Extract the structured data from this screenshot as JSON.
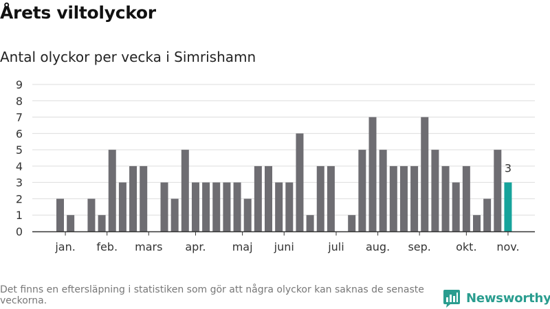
{
  "title": "Årets viltolyckor",
  "subtitle": "Antal olyckor per vecka i Simrishamn",
  "footnote": "Det finns en eftersläpning i statistiken som gör att några olyckor kan saknas de senaste veckorna.",
  "brand": {
    "name": "Newsworthy",
    "icon": "bar-chart-logo-icon",
    "color": "#2a9d8f"
  },
  "chart_data": {
    "type": "bar",
    "x": [
      1,
      2,
      3,
      4,
      5,
      6,
      7,
      8,
      9,
      10,
      11,
      12,
      13,
      14,
      15,
      16,
      17,
      18,
      19,
      20,
      21,
      22,
      23,
      24,
      25,
      26,
      27,
      28,
      29,
      30,
      31,
      32,
      33,
      34,
      35,
      36,
      37,
      38,
      39,
      40,
      41,
      42,
      43,
      44
    ],
    "values": [
      2,
      1,
      0,
      2,
      1,
      5,
      3,
      4,
      4,
      0,
      3,
      2,
      5,
      3,
      3,
      3,
      3,
      3,
      2,
      4,
      4,
      3,
      3,
      6,
      1,
      4,
      4,
      0,
      1,
      5,
      7,
      5,
      4,
      4,
      4,
      7,
      5,
      4,
      3,
      4,
      1,
      2,
      5,
      3
    ],
    "highlight_index": 43,
    "highlight_label": "3",
    "month_ticks": [
      {
        "label": "jan.",
        "at": 1.5
      },
      {
        "label": "feb.",
        "at": 5.5
      },
      {
        "label": "mars",
        "at": 9.5
      },
      {
        "label": "apr.",
        "at": 14.0
      },
      {
        "label": "maj",
        "at": 18.5
      },
      {
        "label": "juni",
        "at": 22.5
      },
      {
        "label": "juli",
        "at": 27.5
      },
      {
        "label": "aug.",
        "at": 31.5
      },
      {
        "label": "sep.",
        "at": 35.5
      },
      {
        "label": "okt.",
        "at": 40.0
      },
      {
        "label": "nov.",
        "at": 44.0
      }
    ],
    "yticks": [
      0,
      1,
      2,
      3,
      4,
      5,
      6,
      7,
      8,
      9
    ],
    "ylim": [
      0,
      9
    ],
    "grid": true,
    "colors": {
      "bar": "#6e6d72",
      "highlight": "#16a39b",
      "grid": "#dddddd",
      "axis": "#333333"
    }
  }
}
